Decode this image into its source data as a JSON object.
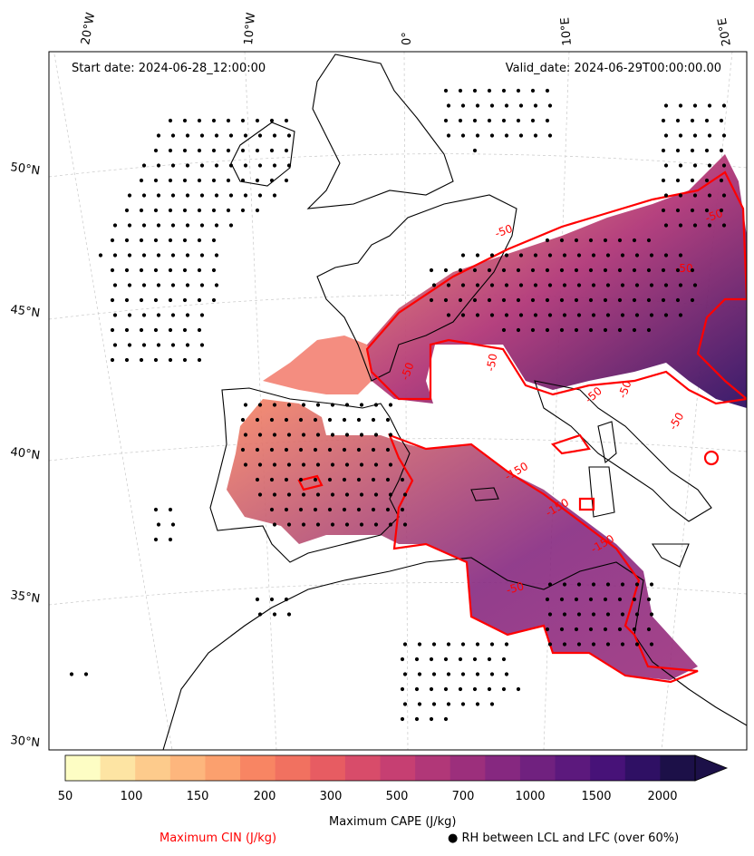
{
  "map": {
    "start_date_label": "Start date: 2024-06-28_12:00:00",
    "valid_date_label": "Valid_date: 2024-06-29T00:00:00.00",
    "lon_labels": [
      "20°W",
      "10°W",
      "0°",
      "10°E",
      "20°E"
    ],
    "lat_labels": [
      "50°N",
      "45°N",
      "40°N",
      "35°N",
      "30°N"
    ],
    "cin_contour_labels": [
      "-50",
      "-50",
      "-50",
      "-50",
      "-50",
      "-50",
      "-50",
      "-50",
      "-150",
      "-150",
      "-150",
      "-50"
    ]
  },
  "colorbar": {
    "title": "Maximum CAPE (J/kg)",
    "ticks": [
      "50",
      "100",
      "150",
      "200",
      "300",
      "500",
      "700",
      "1000",
      "1500",
      "2000"
    ],
    "colors": [
      "#fdfdc4",
      "#fde4a3",
      "#fdcb8c",
      "#fdb67d",
      "#fba06e",
      "#f88563",
      "#f17160",
      "#e75c62",
      "#d84c6a",
      "#c63f72",
      "#b13778",
      "#9c2f7c",
      "#862880",
      "#70217f",
      "#5c197d",
      "#471278",
      "#2f1064",
      "#1c1048"
    ]
  },
  "legend": {
    "cin_label": "Maximum CIN (J/kg)",
    "cin_color": "#ff0000",
    "rh_symbol": "●",
    "rh_label": "RH between LCL and LFC (over 60%)"
  }
}
